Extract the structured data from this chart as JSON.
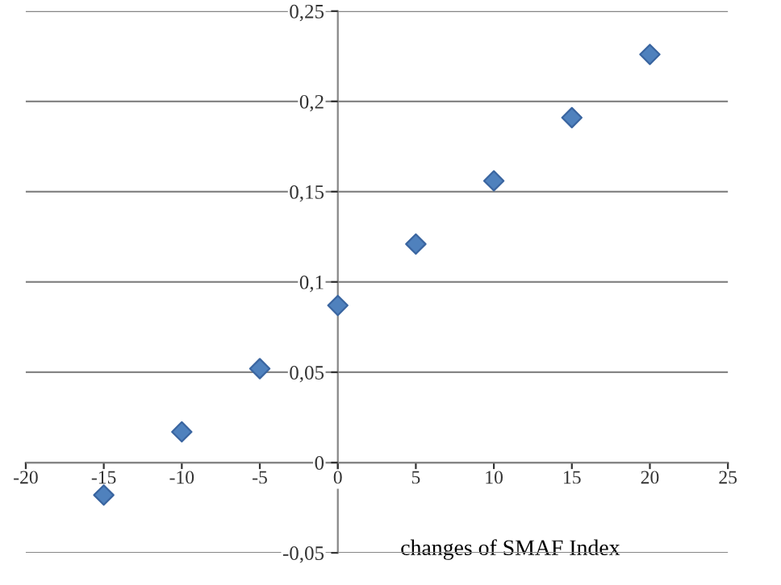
{
  "chart_data": {
    "type": "scatter",
    "xlabel": "changes of SMAF Index",
    "x": [
      -15,
      -10,
      -5,
      0,
      5,
      10,
      15,
      20
    ],
    "series": [
      {
        "color": "#4f81bd",
        "values": [
          -0.018,
          0.017,
          0.052,
          0.087,
          0.121,
          0.156,
          0.191,
          0.226
        ]
      }
    ],
    "marker": "diamond",
    "grid": "y",
    "xlim": [
      -20,
      25
    ],
    "xticks": [
      -20,
      -15,
      -10,
      -5,
      0,
      5,
      10,
      15,
      20,
      25
    ],
    "ylim": [
      -0.05,
      0.25
    ],
    "yticks": [
      {
        "value": -0.05,
        "label": "-0,05"
      },
      {
        "value": 0,
        "label": "0"
      },
      {
        "value": 0.05,
        "label": "0,05"
      },
      {
        "value": 0.1,
        "label": "0,1"
      },
      {
        "value": 0.15,
        "label": "0,15"
      },
      {
        "value": 0.2,
        "label": "0,2"
      },
      {
        "value": 0.25,
        "label": "0,25"
      }
    ]
  }
}
